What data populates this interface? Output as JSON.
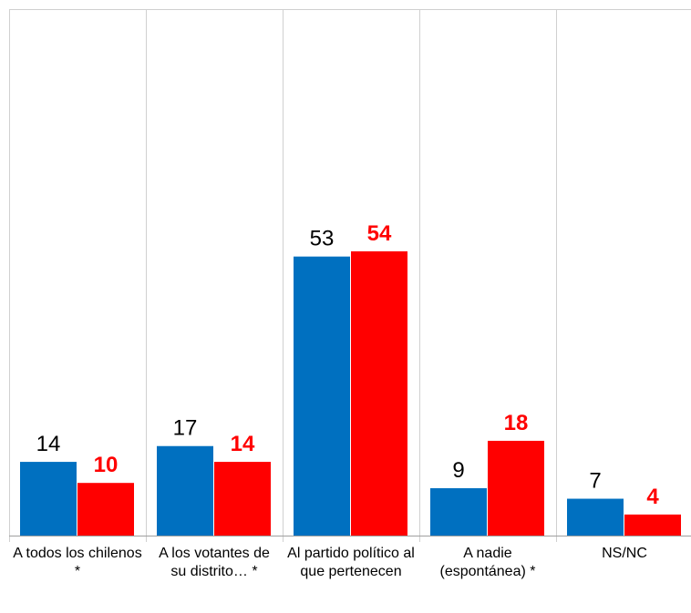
{
  "chart_data": {
    "type": "bar",
    "categories": [
      "A todos los chilenos *",
      "A los votantes de su distrito… *",
      "Al partido político al que pertenecen",
      "A nadie (espontánea) *",
      "NS/NC"
    ],
    "series": [
      {
        "color": "#0070c0",
        "values": [
          14,
          17,
          53,
          9,
          7
        ]
      },
      {
        "color": "#ff0000",
        "values": [
          10,
          14,
          54,
          18,
          4
        ]
      }
    ],
    "ylim": [
      0,
      100
    ]
  }
}
